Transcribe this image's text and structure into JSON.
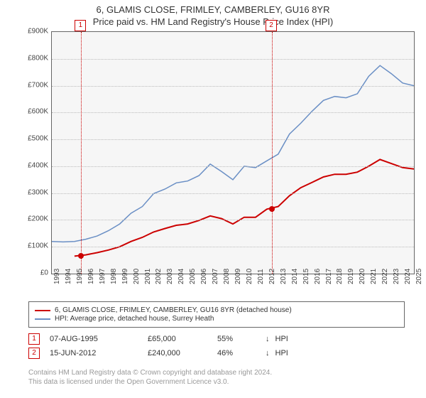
{
  "title_line1": "6, GLAMIS CLOSE, FRIMLEY, CAMBERLEY, GU16 8YR",
  "title_line2": "Price paid vs. HM Land Registry's House Price Index (HPI)",
  "chart": {
    "type": "line",
    "background_color": "#f6f6f6",
    "grid_color": "#bbbbbb",
    "axis_color": "#666666",
    "x_years": [
      1993,
      1994,
      1995,
      1996,
      1997,
      1998,
      1999,
      2000,
      2001,
      2002,
      2003,
      2004,
      2005,
      2006,
      2007,
      2008,
      2009,
      2010,
      2011,
      2012,
      2013,
      2014,
      2015,
      2016,
      2017,
      2018,
      2019,
      2020,
      2021,
      2022,
      2023,
      2024,
      2025
    ],
    "x_min": 1993,
    "x_max": 2025,
    "y_labels": [
      "£0",
      "£100K",
      "£200K",
      "£300K",
      "£400K",
      "£500K",
      "£600K",
      "£700K",
      "£800K",
      "£900K"
    ],
    "y_min": 0,
    "y_max": 900,
    "y_step": 100,
    "series": [
      {
        "name": "6, GLAMIS CLOSE, FRIMLEY, CAMBERLEY, GU16 8YR (detached house)",
        "color": "#cc0000",
        "width": 2,
        "data": [
          [
            1995,
            65
          ],
          [
            1996,
            70
          ],
          [
            1997,
            78
          ],
          [
            1998,
            88
          ],
          [
            1999,
            100
          ],
          [
            2000,
            120
          ],
          [
            2001,
            135
          ],
          [
            2002,
            155
          ],
          [
            2003,
            168
          ],
          [
            2004,
            180
          ],
          [
            2005,
            185
          ],
          [
            2006,
            198
          ],
          [
            2007,
            215
          ],
          [
            2008,
            205
          ],
          [
            2009,
            185
          ],
          [
            2010,
            210
          ],
          [
            2011,
            210
          ],
          [
            2012,
            240
          ],
          [
            2013,
            250
          ],
          [
            2014,
            290
          ],
          [
            2015,
            320
          ],
          [
            2016,
            340
          ],
          [
            2017,
            360
          ],
          [
            2018,
            370
          ],
          [
            2019,
            370
          ],
          [
            2020,
            378
          ],
          [
            2021,
            400
          ],
          [
            2022,
            425
          ],
          [
            2023,
            410
          ],
          [
            2024,
            395
          ],
          [
            2025,
            390
          ]
        ]
      },
      {
        "name": "HPI: Average price, detached house, Surrey Heath",
        "color": "#6a8fc5",
        "width": 1.5,
        "data": [
          [
            1993,
            120
          ],
          [
            1994,
            118
          ],
          [
            1995,
            120
          ],
          [
            1996,
            128
          ],
          [
            1997,
            140
          ],
          [
            1998,
            160
          ],
          [
            1999,
            185
          ],
          [
            2000,
            225
          ],
          [
            2001,
            250
          ],
          [
            2002,
            298
          ],
          [
            2003,
            315
          ],
          [
            2004,
            338
          ],
          [
            2005,
            345
          ],
          [
            2006,
            365
          ],
          [
            2007,
            408
          ],
          [
            2008,
            380
          ],
          [
            2009,
            350
          ],
          [
            2010,
            400
          ],
          [
            2011,
            395
          ],
          [
            2012,
            420
          ],
          [
            2013,
            445
          ],
          [
            2014,
            520
          ],
          [
            2015,
            560
          ],
          [
            2016,
            605
          ],
          [
            2017,
            645
          ],
          [
            2018,
            660
          ],
          [
            2019,
            655
          ],
          [
            2020,
            670
          ],
          [
            2021,
            735
          ],
          [
            2022,
            775
          ],
          [
            2023,
            745
          ],
          [
            2024,
            710
          ],
          [
            2025,
            700
          ]
        ]
      }
    ],
    "sale_markers": [
      {
        "index": 1,
        "year": 1995.6,
        "price": 65,
        "line_color": "#cc0000",
        "dot_color": "#cc0000"
      },
      {
        "index": 2,
        "year": 2012.45,
        "price": 240,
        "line_color": "#cc0000",
        "dot_color": "#cc0000"
      }
    ]
  },
  "legend": [
    {
      "color": "#cc0000",
      "text": "6, GLAMIS CLOSE, FRIMLEY, CAMBERLEY, GU16 8YR (detached house)"
    },
    {
      "color": "#6a8fc5",
      "text": "HPI: Average price, detached house, Surrey Heath"
    }
  ],
  "sales": [
    {
      "num": "1",
      "date": "07-AUG-1995",
      "price": "£65,000",
      "pct": "55%",
      "arrow": "↓",
      "hpi": "HPI"
    },
    {
      "num": "2",
      "date": "15-JUN-2012",
      "price": "£240,000",
      "pct": "46%",
      "arrow": "↓",
      "hpi": "HPI"
    }
  ],
  "footer_line1": "Contains HM Land Registry data © Crown copyright and database right 2024.",
  "footer_line2": "This data is licensed under the Open Government Licence v3.0."
}
